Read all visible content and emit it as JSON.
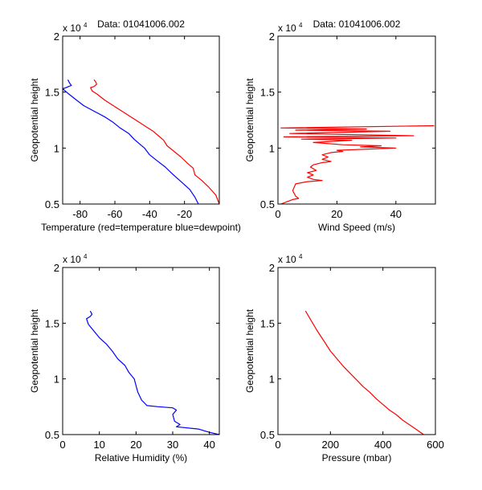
{
  "figure": {
    "background": "#ffffff"
  },
  "chart_data": [
    {
      "id": "temperature",
      "type": "line",
      "title": "Data: 01041006.002",
      "xlabel": "Temperature (red=temperature blue=dewpoint)",
      "ylabel": "Geopotential height",
      "exponent_label": "x 10",
      "exponent_power": "4",
      "xlim": [
        -90,
        0
      ],
      "ylim": [
        5000,
        20000
      ],
      "xticks": [
        -80,
        -60,
        -40,
        -20
      ],
      "xtick_labels": [
        "-80",
        "-60",
        "-40",
        "-20"
      ],
      "yticks": [
        5000,
        10000,
        15000,
        20000
      ],
      "ytick_labels": [
        "0.5",
        "1",
        "1.5",
        "2"
      ],
      "grid": false,
      "series": [
        {
          "name": "temperature",
          "color": "#ff0000",
          "points": [
            [
              -72,
              16100
            ],
            [
              -71,
              15900
            ],
            [
              -70.5,
              15700
            ],
            [
              -72,
              15500
            ],
            [
              -74,
              15400
            ],
            [
              -73,
              15100
            ],
            [
              -70,
              14800
            ],
            [
              -66,
              14300
            ],
            [
              -61,
              13800
            ],
            [
              -56,
              13300
            ],
            [
              -52,
              12900
            ],
            [
              -47,
              12400
            ],
            [
              -42,
              11900
            ],
            [
              -38,
              11500
            ],
            [
              -35,
              11100
            ],
            [
              -32,
              10700
            ],
            [
              -30,
              10200
            ],
            [
              -26,
              9700
            ],
            [
              -22,
              9200
            ],
            [
              -18,
              8600
            ],
            [
              -15,
              8200
            ],
            [
              -14,
              7600
            ],
            [
              -10,
              7100
            ],
            [
              -6,
              6500
            ],
            [
              -2,
              5800
            ],
            [
              0,
              5000
            ]
          ]
        },
        {
          "name": "dewpoint",
          "color": "#0000ff",
          "points": [
            [
              -87,
              16100
            ],
            [
              -86,
              15800
            ],
            [
              -85,
              15600
            ],
            [
              -88,
              15400
            ],
            [
              -90,
              15300
            ],
            [
              -87,
              14900
            ],
            [
              -83,
              14400
            ],
            [
              -78,
              13800
            ],
            [
              -72,
              13300
            ],
            [
              -66,
              12800
            ],
            [
              -61,
              12300
            ],
            [
              -57,
              11800
            ],
            [
              -52,
              11300
            ],
            [
              -49,
              10800
            ],
            [
              -46,
              10400
            ],
            [
              -43,
              10000
            ],
            [
              -40,
              9400
            ],
            [
              -36,
              8900
            ],
            [
              -31,
              8300
            ],
            [
              -27,
              7700
            ],
            [
              -22,
              7000
            ],
            [
              -17,
              6300
            ],
            [
              -14,
              5600
            ],
            [
              -12,
              5000
            ]
          ]
        }
      ]
    },
    {
      "id": "wind",
      "type": "line",
      "title": "Data: 01041006.002",
      "xlabel": "Wind Speed (m/s)",
      "ylabel": "Geopotential height",
      "exponent_label": "x 10",
      "exponent_power": "4",
      "xlim": [
        0,
        53.4
      ],
      "ylim": [
        5000,
        20000
      ],
      "xticks": [
        0,
        20,
        40
      ],
      "xtick_labels": [
        "0",
        "20",
        "40"
      ],
      "yticks": [
        5000,
        10000,
        15000,
        20000
      ],
      "ytick_labels": [
        "0.5",
        "1",
        "1.5",
        "2"
      ],
      "grid": false,
      "series": [
        {
          "name": "wind speed",
          "color": "#ff0000",
          "points": [
            [
              1,
              5000
            ],
            [
              3,
              5200
            ],
            [
              5,
              5400
            ],
            [
              7,
              5500
            ],
            [
              6,
              5700
            ],
            [
              5,
              6200
            ],
            [
              6,
              6800
            ],
            [
              10,
              7000
            ],
            [
              15,
              7100
            ],
            [
              12,
              7200
            ],
            [
              10,
              7400
            ],
            [
              12,
              7600
            ],
            [
              10,
              7800
            ],
            [
              13,
              8000
            ],
            [
              11,
              8300
            ],
            [
              12,
              8500
            ],
            [
              15,
              8700
            ],
            [
              18,
              8800
            ],
            [
              15,
              9000
            ],
            [
              17,
              9200
            ],
            [
              15,
              9400
            ],
            [
              18,
              9600
            ],
            [
              22,
              9700
            ],
            [
              20,
              9800
            ],
            [
              40,
              10000
            ],
            [
              28,
              10100
            ],
            [
              35,
              10200
            ],
            [
              22,
              10300
            ],
            [
              12,
              10500
            ],
            [
              25,
              10700
            ],
            [
              8,
              10800
            ],
            [
              40,
              10900
            ],
            [
              2,
              11000
            ],
            [
              46,
              11100
            ],
            [
              4,
              11300
            ],
            [
              38,
              11500
            ],
            [
              6,
              11600
            ],
            [
              30,
              11700
            ],
            [
              1,
              11800
            ],
            [
              53,
              12000
            ]
          ]
        }
      ]
    },
    {
      "id": "humidity",
      "type": "line",
      "title": "",
      "xlabel": "Relative Humidity (%)",
      "ylabel": "Geopotential height",
      "exponent_label": "x 10",
      "exponent_power": "4",
      "xlim": [
        0,
        42.7
      ],
      "ylim": [
        5000,
        20000
      ],
      "xticks": [
        0,
        10,
        20,
        30,
        40
      ],
      "xtick_labels": [
        "0",
        "10",
        "20",
        "30",
        "40"
      ],
      "yticks": [
        5000,
        10000,
        15000,
        20000
      ],
      "ytick_labels": [
        "0.5",
        "1",
        "1.5",
        "2"
      ],
      "grid": false,
      "series": [
        {
          "name": "relative humidity",
          "color": "#0000ff",
          "points": [
            [
              7.5,
              16100
            ],
            [
              8,
              15800
            ],
            [
              7.5,
              15600
            ],
            [
              6.5,
              15400
            ],
            [
              7,
              14900
            ],
            [
              8.5,
              14300
            ],
            [
              10,
              13700
            ],
            [
              12,
              13100
            ],
            [
              13.5,
              12500
            ],
            [
              15,
              11800
            ],
            [
              17,
              11200
            ],
            [
              18,
              10600
            ],
            [
              19.5,
              10000
            ],
            [
              20,
              9400
            ],
            [
              20.5,
              8800
            ],
            [
              21.5,
              8100
            ],
            [
              23,
              7600
            ],
            [
              26,
              7500
            ],
            [
              30,
              7400
            ],
            [
              31,
              7200
            ],
            [
              30,
              6800
            ],
            [
              30.5,
              6200
            ],
            [
              32,
              5900
            ],
            [
              31,
              5700
            ],
            [
              37,
              5500
            ],
            [
              40,
              5200
            ],
            [
              42.7,
              5000
            ]
          ]
        }
      ]
    },
    {
      "id": "pressure",
      "type": "line",
      "title": "",
      "xlabel": "Pressure (mbar)",
      "ylabel": "Geopotential height",
      "exponent_label": "x 10",
      "exponent_power": "4",
      "xlim": [
        0,
        600
      ],
      "ylim": [
        5000,
        20000
      ],
      "xticks": [
        0,
        200,
        400,
        600
      ],
      "xtick_labels": [
        "0",
        "200",
        "400",
        "600"
      ],
      "yticks": [
        5000,
        10000,
        15000,
        20000
      ],
      "ytick_labels": [
        "0.5",
        "1",
        "1.5",
        "2"
      ],
      "grid": false,
      "series": [
        {
          "name": "pressure",
          "color": "#ff0000",
          "points": [
            [
              105,
              16100
            ],
            [
              125,
              15300
            ],
            [
              150,
              14300
            ],
            [
              175,
              13400
            ],
            [
              200,
              12500
            ],
            [
              225,
              11800
            ],
            [
              250,
              11100
            ],
            [
              275,
              10500
            ],
            [
              300,
              9900
            ],
            [
              325,
              9300
            ],
            [
              350,
              8800
            ],
            [
              375,
              8200
            ],
            [
              400,
              7700
            ],
            [
              425,
              7200
            ],
            [
              450,
              6800
            ],
            [
              475,
              6300
            ],
            [
              500,
              5900
            ],
            [
              525,
              5500
            ],
            [
              555,
              5000
            ]
          ]
        }
      ]
    }
  ]
}
